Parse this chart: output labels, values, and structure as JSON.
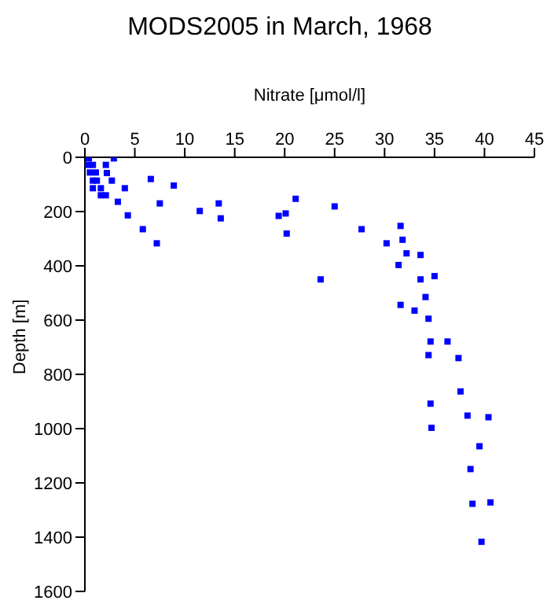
{
  "chart_data": {
    "type": "scatter",
    "title": "MODS2005 in March, 1968",
    "xlabel": "Nitrate [μmol/l]",
    "ylabel": "Depth [m]",
    "x": [
      0.4,
      2.9,
      0.3,
      0.8,
      2.1,
      0.5,
      1.1,
      2.2,
      6.6,
      0.8,
      1.2,
      2.7,
      8.9,
      0.8,
      1.6,
      4.0,
      1.6,
      2.1,
      3.3,
      7.5,
      13.4,
      21.1,
      11.5,
      4.3,
      13.6,
      19.4,
      20.1,
      20.2,
      5.8,
      7.2,
      25.0,
      27.7,
      31.6,
      31.8,
      30.2,
      32.2,
      33.6,
      31.4,
      23.6,
      33.6,
      35.0,
      34.1,
      31.6,
      33.0,
      34.4,
      34.6,
      36.3,
      34.4,
      37.4,
      37.6,
      34.6,
      38.3,
      40.4,
      34.7,
      39.5,
      38.6,
      38.8,
      40.6,
      39.7
    ],
    "series": [
      {
        "color": "#0000ff",
        "values": [
          4,
          4,
          28,
          28,
          28,
          56,
          56,
          58,
          80,
          86,
          86,
          86,
          104,
          114,
          114,
          114,
          140,
          140,
          164,
          170,
          170,
          153,
          198,
          214,
          225,
          216,
          207,
          281,
          265,
          317,
          181,
          265,
          253,
          304,
          317,
          354,
          360,
          397,
          450,
          450,
          438,
          515,
          544,
          565,
          595,
          679,
          679,
          729,
          740,
          863,
          908,
          952,
          958,
          997,
          1065,
          1149,
          1277,
          1272,
          1417
        ]
      }
    ],
    "xlim": [
      0,
      45
    ],
    "xticks": [
      0,
      5,
      10,
      15,
      20,
      25,
      30,
      35,
      40,
      45
    ],
    "ylim": [
      1600,
      0
    ],
    "yticks": [
      0,
      200,
      400,
      600,
      800,
      1000,
      1200,
      1400,
      1600
    ],
    "marker": "square",
    "grid": false,
    "legend": false
  }
}
